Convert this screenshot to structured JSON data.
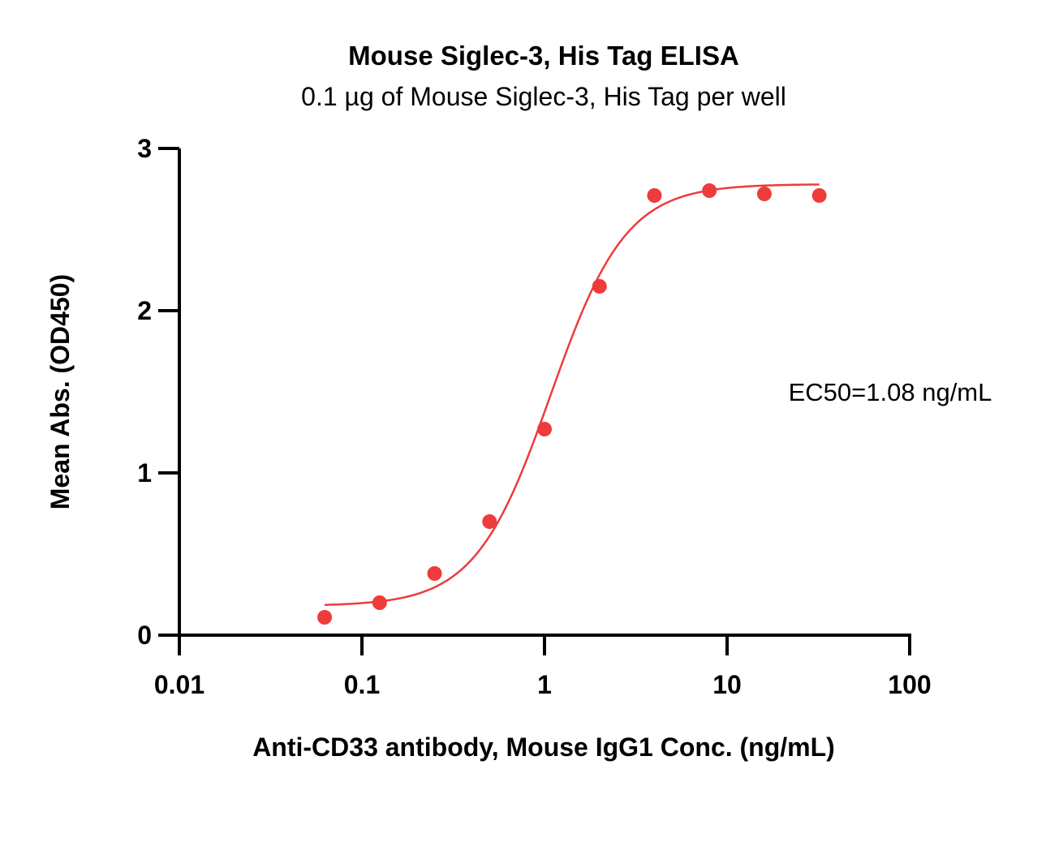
{
  "chart_data": {
    "type": "scatter",
    "title": "Mouse Siglec-3, His Tag ELISA",
    "subtitle": "0.1 µg of Mouse Siglec-3, His Tag per well",
    "xlabel": "Anti-CD33 antibody, Mouse IgG1 Conc. (ng/mL)",
    "ylabel": "Mean Abs. (OD450)",
    "xscale": "log",
    "xlim": [
      0.01,
      100
    ],
    "ylim": [
      0,
      3
    ],
    "xticks": [
      0.01,
      0.1,
      1,
      10,
      100
    ],
    "xtick_labels": [
      "0.01",
      "0.1",
      "1",
      "10",
      "100"
    ],
    "yticks": [
      0,
      1,
      2,
      3
    ],
    "ytick_labels": [
      "0",
      "1",
      "2",
      "3"
    ],
    "grid": false,
    "legend": "none",
    "series": [
      {
        "color": "#ee3b3b",
        "points": [
          {
            "x": 0.0625,
            "y": 0.11
          },
          {
            "x": 0.125,
            "y": 0.2
          },
          {
            "x": 0.25,
            "y": 0.38
          },
          {
            "x": 0.5,
            "y": 0.7
          },
          {
            "x": 1,
            "y": 1.27
          },
          {
            "x": 2,
            "y": 2.15
          },
          {
            "x": 4,
            "y": 2.71
          },
          {
            "x": 8,
            "y": 2.74
          },
          {
            "x": 16,
            "y": 2.72
          },
          {
            "x": 32,
            "y": 2.71
          }
        ],
        "fit": {
          "model": "4PL",
          "bottom": 0.18,
          "top": 2.78,
          "ec50": 1.08,
          "hill": 2.1
        }
      }
    ],
    "annotations": [
      {
        "text": "EC50=1.08 ng/mL"
      }
    ]
  }
}
